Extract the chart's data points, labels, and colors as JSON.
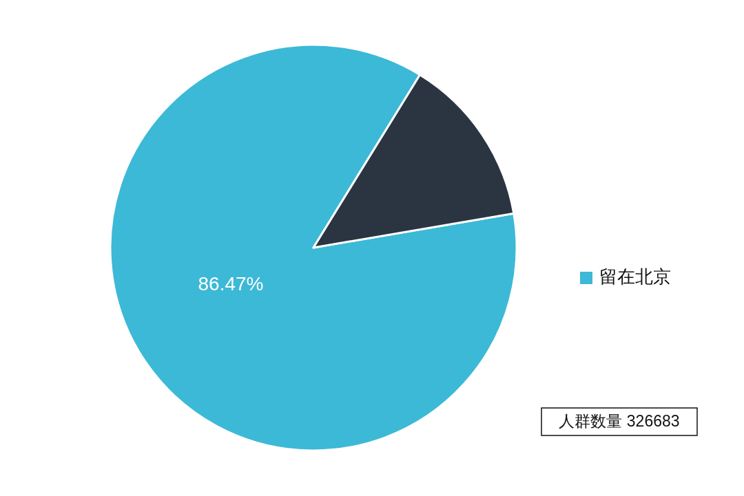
{
  "chart_data": {
    "type": "pie",
    "categories": [
      "留在北京",
      null
    ],
    "values": [
      86.47,
      13.53
    ],
    "colors": [
      "#3cb9d6",
      "#2b3441"
    ],
    "value_labels": [
      "86.47%",
      null
    ],
    "legend": "right",
    "annotations": [
      "人群数量 326683"
    ]
  }
}
